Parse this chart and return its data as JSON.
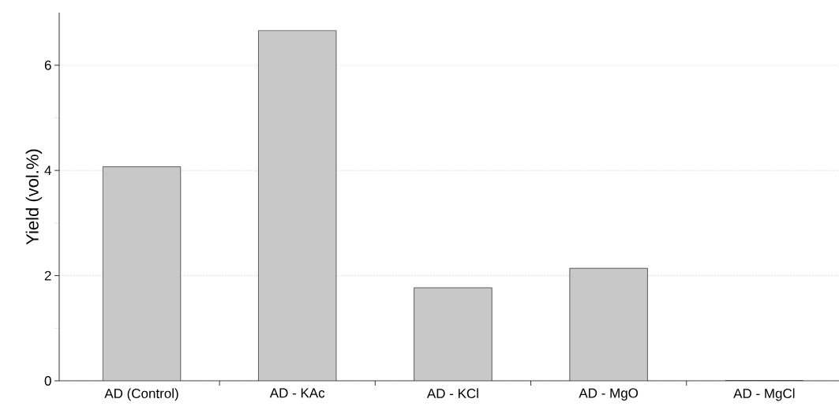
{
  "chart_data": {
    "type": "bar",
    "ylabel": "Yield (vol.%)",
    "categories": [
      "AD (Control)",
      "AD - KAc",
      "AD - KCl",
      "AD - MgO",
      "AD - MgCl"
    ],
    "values": [
      4.07,
      6.66,
      1.77,
      2.14,
      0
    ],
    "color": "#c8c8c8",
    "ylim": [
      0,
      7
    ],
    "yticks": [
      0,
      2,
      4,
      6
    ],
    "grid": "y"
  }
}
